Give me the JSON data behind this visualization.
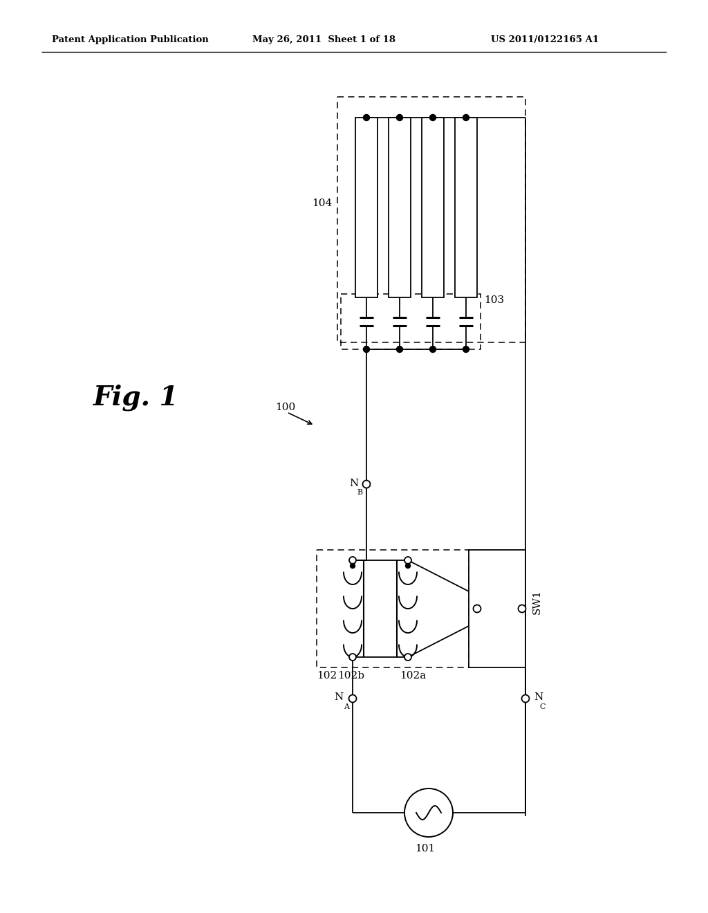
{
  "title_left": "Patent Application Publication",
  "title_mid": "May 26, 2011  Sheet 1 of 18",
  "title_right": "US 2011/0122165 A1",
  "fig_label": "Fig. 1",
  "label_100": "100",
  "label_101": "101",
  "label_102": "102",
  "label_102a": "102a",
  "label_102b": "102b",
  "label_103": "103",
  "label_104": "104",
  "label_NA": "N",
  "label_NA_sub": "A",
  "label_NB": "N",
  "label_NB_sub": "B",
  "label_NC": "N",
  "label_NC_sub": "C",
  "label_SW1": "SW1",
  "bg_color": "#ffffff",
  "line_color": "#000000"
}
